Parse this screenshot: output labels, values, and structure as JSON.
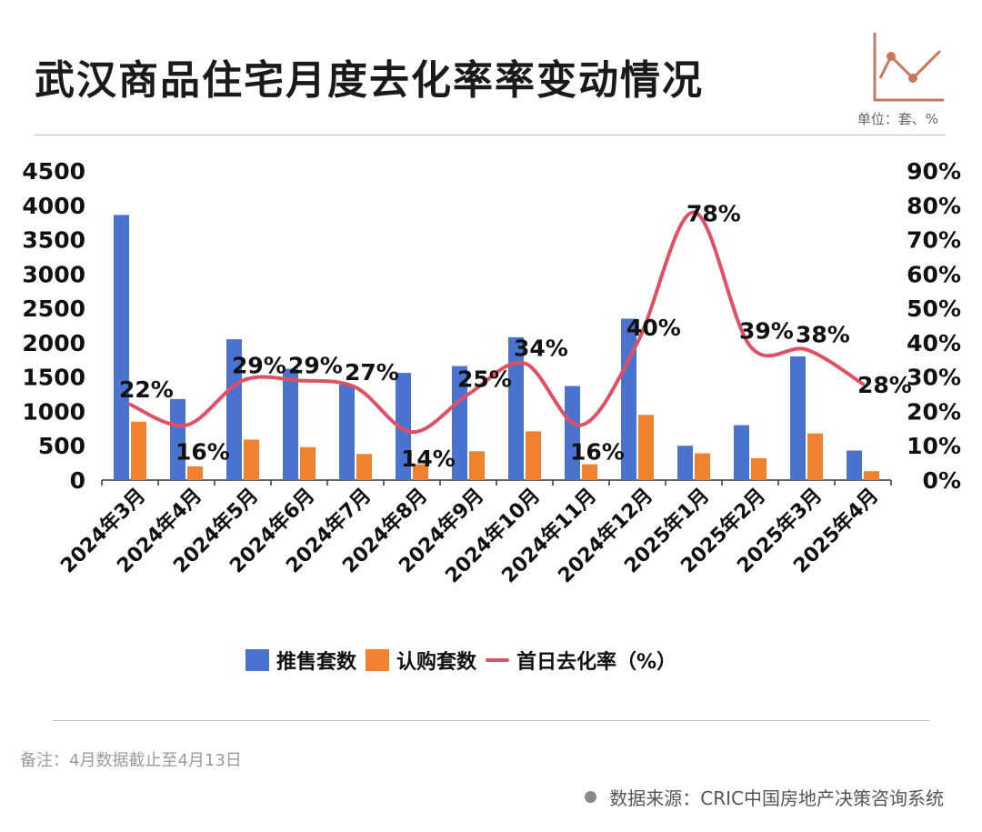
{
  "title": "武汉商品住宅月度去化率率变动情况",
  "unit": "单位：套、%",
  "note": "备注：4月数据截止至4月13日",
  "source": "数据来源：CRIC中国房地产决策咨询系统",
  "colors": {
    "bar_supply": "#4a72cf",
    "bar_sub": "#f0822f",
    "line": "#e05064",
    "logo": "#c9765e"
  },
  "chart_data": {
    "type": "bar",
    "categories": [
      "2024年3月",
      "2024年4月",
      "2024年5月",
      "2024年6月",
      "2024年7月",
      "2024年8月",
      "2024年9月",
      "2024年10月",
      "2024年11月",
      "2024年12月",
      "2025年1月",
      "2025年2月",
      "2025年3月",
      "2025年4月"
    ],
    "series": [
      {
        "name": "推售套数",
        "type": "bar",
        "axis": "left",
        "values": [
          3860,
          1180,
          2050,
          1620,
          1390,
          1560,
          1660,
          2080,
          1370,
          2350,
          500,
          800,
          1800,
          430
        ]
      },
      {
        "name": "认购套数",
        "type": "bar",
        "axis": "left",
        "values": [
          850,
          200,
          590,
          480,
          380,
          230,
          420,
          710,
          230,
          950,
          390,
          320,
          680,
          130
        ]
      },
      {
        "name": "首日去化率（%）",
        "type": "line",
        "axis": "right",
        "values": [
          22,
          16,
          29,
          29,
          27,
          14,
          25,
          34,
          16,
          40,
          78,
          39,
          38,
          28
        ]
      }
    ],
    "data_labels": [
      "22%",
      "16%",
      "29%",
      "29%",
      "27%",
      "14%",
      "25%",
      "34%",
      "16%",
      "40%",
      "78%",
      "39%",
      "38%",
      "28%"
    ],
    "y_left": {
      "min": 0,
      "max": 4500,
      "step": 500,
      "ticks": [
        "0",
        "500",
        "1000",
        "1500",
        "2000",
        "2500",
        "3000",
        "3500",
        "4000",
        "4500"
      ]
    },
    "y_right": {
      "min": 0,
      "max": 90,
      "step": 10,
      "ticks": [
        "0%",
        "10%",
        "20%",
        "30%",
        "40%",
        "50%",
        "60%",
        "70%",
        "80%",
        "90%"
      ]
    },
    "grid": false,
    "legend_position": "bottom"
  },
  "legend": {
    "supply": "推售套数",
    "sub": "认购套数",
    "rate": "首日去化率（%）"
  }
}
